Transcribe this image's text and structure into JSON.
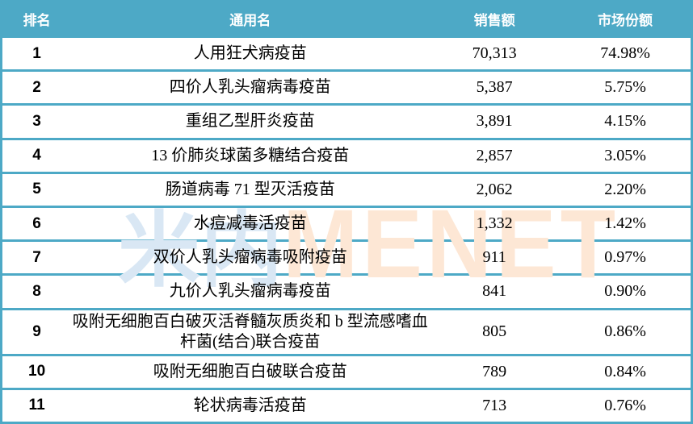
{
  "chart_data": {
    "type": "table",
    "columns": [
      "排名",
      "通用名",
      "销售额",
      "市场份额"
    ],
    "rows": [
      [
        "1",
        "人用狂犬病疫苗",
        "70,313",
        "74.98%"
      ],
      [
        "2",
        "四价人乳头瘤病毒疫苗",
        "5,387",
        "5.75%"
      ],
      [
        "3",
        "重组乙型肝炎疫苗",
        "3,891",
        "4.15%"
      ],
      [
        "4",
        "13 价肺炎球菌多糖结合疫苗",
        "2,857",
        "3.05%"
      ],
      [
        "5",
        "肠道病毒 71 型灭活疫苗",
        "2,062",
        "2.20%"
      ],
      [
        "6",
        "水痘减毒活疫苗",
        "1,332",
        "1.42%"
      ],
      [
        "7",
        "双价人乳头瘤病毒吸附疫苗",
        "911",
        "0.97%"
      ],
      [
        "8",
        "九价人乳头瘤病毒疫苗",
        "841",
        "0.90%"
      ],
      [
        "9",
        "吸附无细胞百白破灭活脊髓灰质炎和 b 型流感嗜血杆菌(结合)联合疫苗",
        "805",
        "0.86%"
      ],
      [
        "10",
        "吸附无细胞百白破联合疫苗",
        "789",
        "0.84%"
      ],
      [
        "11",
        "轮状病毒活疫苗",
        "713",
        "0.76%"
      ]
    ]
  },
  "watermark": {
    "cn": "米内",
    "en": "MENET"
  },
  "colors": {
    "accent": "#4DA9C6",
    "watermark_blue": "#D9E7F4",
    "watermark_peach": "#FDE7D5",
    "header_text": "#FFFFFF",
    "body_text": "#000000"
  }
}
